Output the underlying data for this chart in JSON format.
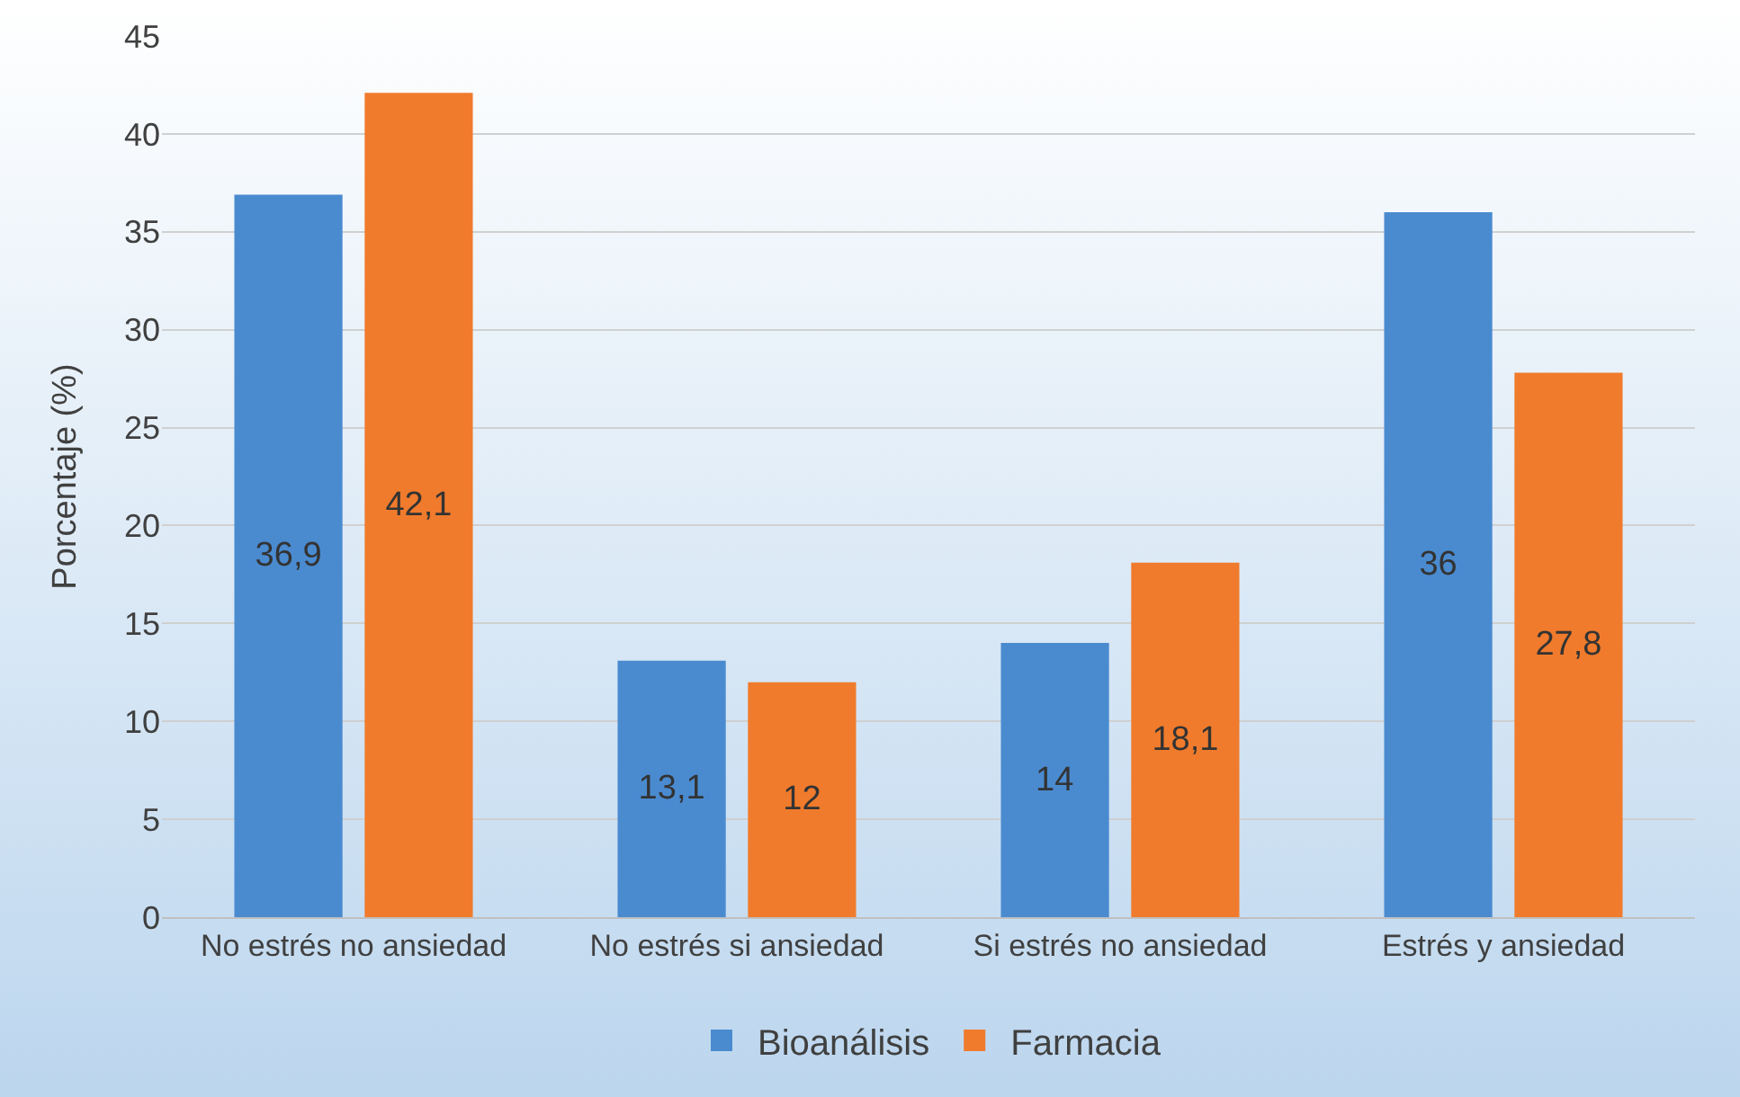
{
  "chart_data": {
    "type": "bar",
    "ylabel": "Porcentaje (%)",
    "categories": [
      "No estrés no ansiedad",
      "No estrés si ansiedad",
      "Si estrés no ansiedad",
      "Estrés y ansiedad"
    ],
    "series": [
      {
        "name": "Bioanálisis",
        "color": "#4a8bd0",
        "values": [
          36.9,
          13.1,
          14,
          36
        ],
        "value_labels": [
          "36,9",
          "13,1",
          "14",
          "36"
        ]
      },
      {
        "name": "Farmacia",
        "color": "#f07b2c",
        "values": [
          42.1,
          12,
          18.1,
          27.8
        ],
        "value_labels": [
          "42,1",
          "12",
          "18,1",
          "27,8"
        ]
      }
    ],
    "ylim": [
      0,
      45
    ],
    "yticks": [
      0,
      5,
      10,
      15,
      20,
      25,
      30,
      35,
      40,
      45
    ],
    "grid": "y",
    "legend": "bottom"
  }
}
